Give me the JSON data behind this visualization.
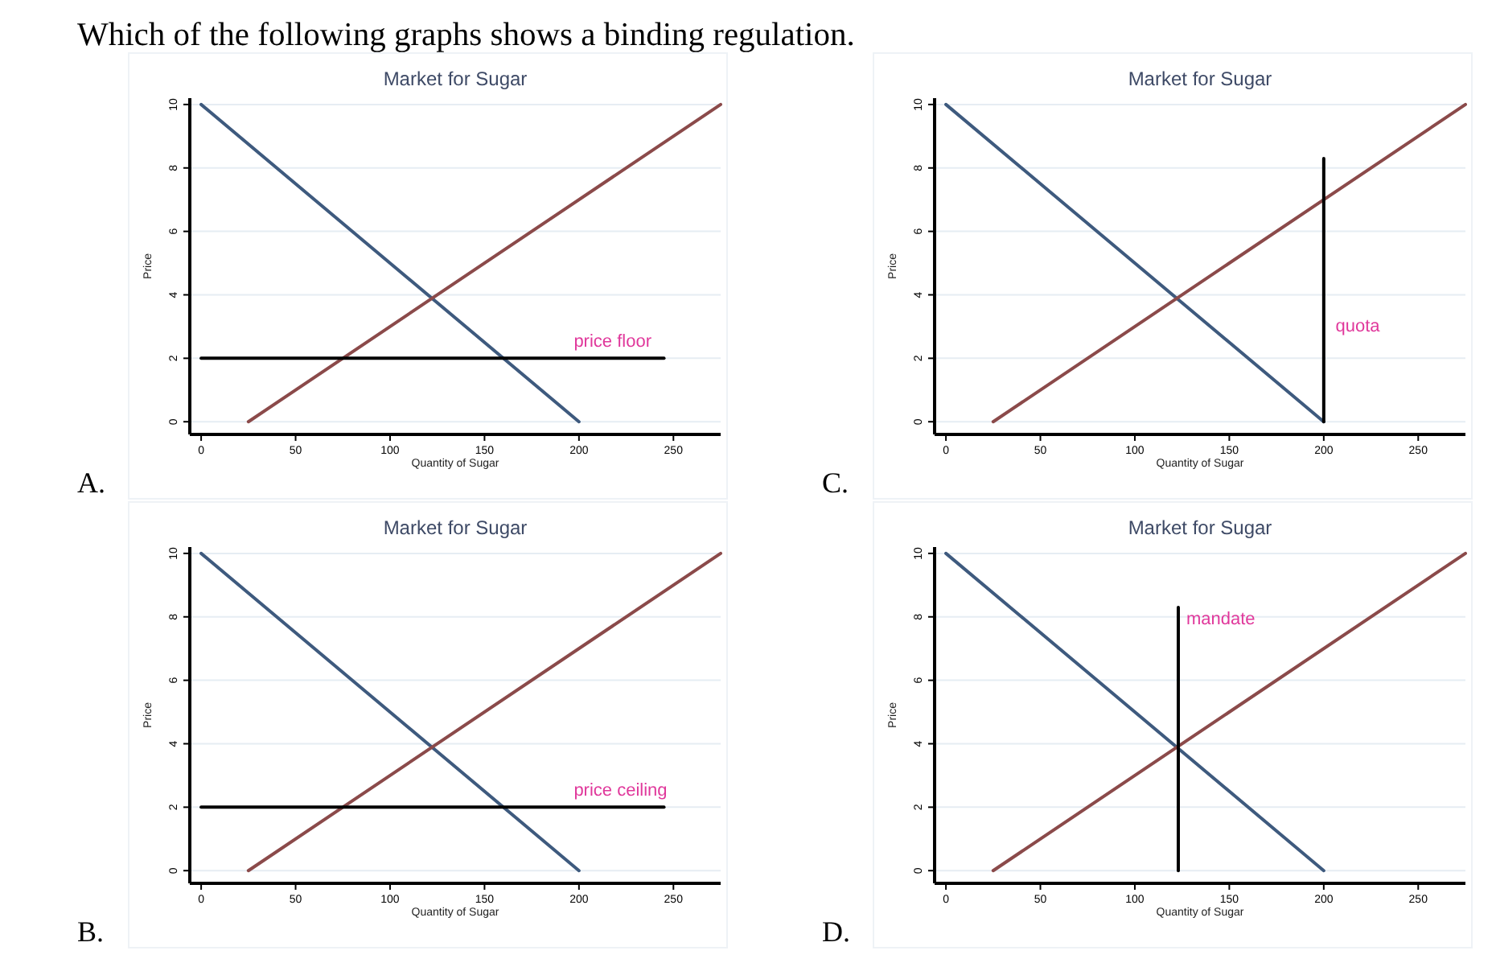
{
  "chart_data": [
    {
      "type": "other",
      "title": "Which of the following graphs shows a binding regulation."
    },
    {
      "type": "line",
      "title": "Market for Sugar",
      "xlabel": "Quantity of Sugar",
      "ylabel": "Price",
      "xlim": [
        -6,
        275
      ],
      "ylim": [
        -0.4,
        10.2
      ],
      "xticks": [
        0,
        50,
        100,
        150,
        200,
        250
      ],
      "yticks": [
        0,
        2,
        4,
        6,
        8,
        10
      ],
      "grid": "y",
      "series": [
        {
          "color": "#3e5a7e",
          "x": [
            0,
            200
          ],
          "values": [
            10,
            0
          ]
        },
        {
          "color": "#8b4a4a",
          "x": [
            25,
            275
          ],
          "values": [
            0,
            10
          ]
        },
        {
          "color": "#000000",
          "x": [
            0,
            245
          ],
          "values": [
            2,
            2
          ]
        }
      ],
      "annotations": [
        {
          "text": "price floor",
          "x": 193,
          "y": 2
        },
        "A."
      ]
    },
    {
      "type": "line",
      "title": "Market for Sugar",
      "xlabel": "Quantity of Sugar",
      "ylabel": "Price",
      "xlim": [
        -6,
        275
      ],
      "ylim": [
        -0.4,
        10.2
      ],
      "xticks": [
        0,
        50,
        100,
        150,
        200,
        250
      ],
      "yticks": [
        0,
        2,
        4,
        6,
        8,
        10
      ],
      "grid": "y",
      "series": [
        {
          "color": "#3e5a7e",
          "x": [
            0,
            200
          ],
          "values": [
            10,
            0
          ]
        },
        {
          "color": "#8b4a4a",
          "x": [
            25,
            275
          ],
          "values": [
            0,
            10
          ]
        },
        {
          "color": "#000000",
          "x": [
            200,
            200
          ],
          "values": [
            0,
            8.3
          ]
        }
      ],
      "annotations": [
        {
          "text": "quota",
          "x": 202,
          "y": 2.5
        },
        "C."
      ]
    },
    {
      "type": "line",
      "title": "Market for Sugar",
      "xlabel": "Quantity of Sugar",
      "ylabel": "Price",
      "xlim": [
        -6,
        275
      ],
      "ylim": [
        -0.4,
        10.2
      ],
      "xticks": [
        0,
        50,
        100,
        150,
        200,
        250
      ],
      "yticks": [
        0,
        2,
        4,
        6,
        8,
        10
      ],
      "grid": "y",
      "series": [
        {
          "color": "#3e5a7e",
          "x": [
            0,
            200
          ],
          "values": [
            10,
            0
          ]
        },
        {
          "color": "#8b4a4a",
          "x": [
            25,
            275
          ],
          "values": [
            0,
            10
          ]
        },
        {
          "color": "#000000",
          "x": [
            0,
            245
          ],
          "values": [
            2,
            2
          ]
        }
      ],
      "annotations": [
        {
          "text": "price ceiling",
          "x": 193,
          "y": 2
        },
        "B."
      ]
    },
    {
      "type": "line",
      "title": "Market for Sugar",
      "xlabel": "Quantity of Sugar",
      "ylabel": "Price",
      "xlim": [
        -6,
        275
      ],
      "ylim": [
        -0.4,
        10.2
      ],
      "xticks": [
        0,
        50,
        100,
        150,
        200,
        250
      ],
      "yticks": [
        0,
        2,
        4,
        6,
        8,
        10
      ],
      "grid": "y",
      "series": [
        {
          "color": "#3e5a7e",
          "x": [
            0,
            200
          ],
          "values": [
            10,
            0
          ]
        },
        {
          "color": "#8b4a4a",
          "x": [
            25,
            275
          ],
          "values": [
            0,
            10
          ]
        },
        {
          "color": "#000000",
          "x": [
            123,
            123
          ],
          "values": [
            0,
            8.3
          ]
        }
      ],
      "annotations": [
        {
          "text": "mandate",
          "x": 123,
          "y": 7.4
        },
        "D."
      ]
    }
  ]
}
